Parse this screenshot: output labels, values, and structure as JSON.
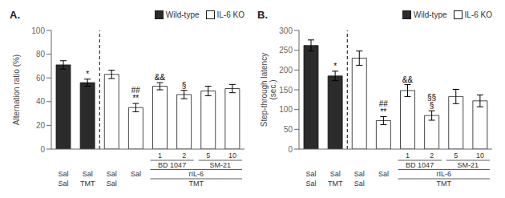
{
  "chart_data": [
    {
      "type": "bar",
      "title": "A.",
      "y_label": "Alternation ratio (%)",
      "ylim": [
        0,
        100
      ],
      "yticks": [
        0,
        20,
        40,
        60,
        80,
        100
      ],
      "categories": [
        null,
        null,
        null,
        null,
        "1",
        "2",
        "5",
        "10"
      ],
      "series": [
        {
          "name": "Wild-type",
          "color": "#2b2b2b",
          "values": [
            71,
            56,
            null,
            null,
            null,
            null,
            null,
            null
          ],
          "errors": [
            3.5,
            3.0,
            null,
            null,
            null,
            null,
            null,
            null
          ]
        },
        {
          "name": "IL-6 KO",
          "color": "white",
          "values": [
            null,
            null,
            63,
            35,
            53,
            46,
            49,
            51
          ],
          "errors": [
            null,
            null,
            3.5,
            3.5,
            3.0,
            3.5,
            4.0,
            3.5
          ]
        }
      ],
      "annotations": [
        {
          "bar": 1,
          "text": "*"
        },
        {
          "bar": 3,
          "text": "**"
        },
        {
          "bar": 3,
          "text": "##"
        },
        {
          "bar": 4,
          "text": "&&"
        },
        {
          "bar": 5,
          "text": "§"
        }
      ],
      "group_labels": [
        [
          {
            "text": "BD 1047",
            "from": 4,
            "to": 5
          },
          {
            "text": "SM-21",
            "from": 6,
            "to": 7
          }
        ],
        [
          {
            "text": "Sal",
            "from": 0,
            "to": 0
          },
          {
            "text": "Sal",
            "from": 1,
            "to": 1
          },
          {
            "text": "Sal",
            "from": 2,
            "to": 2
          },
          {
            "text": "Sal",
            "from": 3,
            "to": 3
          },
          {
            "text": "rIL-6",
            "from": 4,
            "to": 7
          }
        ],
        [
          {
            "text": "Sal",
            "from": 0,
            "to": 0
          },
          {
            "text": "TMT",
            "from": 1,
            "to": 1
          },
          {
            "text": "Sal",
            "from": 2,
            "to": 2
          },
          {
            "text": "TMT",
            "from": 4,
            "to": 7
          }
        ]
      ],
      "legend": "upper right"
    },
    {
      "type": "bar",
      "title": "B.",
      "y_label": "Step-through latency\n(sec.)",
      "ylim": [
        0,
        300
      ],
      "yticks": [
        0,
        50,
        100,
        150,
        200,
        250,
        300
      ],
      "categories": [
        null,
        null,
        null,
        null,
        "1",
        "2",
        "5",
        "10"
      ],
      "series": [
        {
          "name": "Wild-type",
          "color": "#2b2b2b",
          "values": [
            262,
            185,
            null,
            null,
            null,
            null,
            null,
            null
          ],
          "errors": [
            14,
            12,
            null,
            null,
            null,
            null,
            null,
            null
          ]
        },
        {
          "name": "IL-6 KO",
          "color": "white",
          "values": [
            null,
            null,
            230,
            72,
            148,
            85,
            133,
            122
          ],
          "errors": [
            null,
            null,
            18,
            10,
            15,
            12,
            18,
            15
          ]
        }
      ],
      "annotations": [
        {
          "bar": 1,
          "text": "*"
        },
        {
          "bar": 3,
          "text": "**"
        },
        {
          "bar": 3,
          "text": "##"
        },
        {
          "bar": 4,
          "text": "&&"
        },
        {
          "bar": 5,
          "text": "§"
        },
        {
          "bar": 5,
          "text": "§§"
        }
      ],
      "group_labels": [
        [
          {
            "text": "BD 1047",
            "from": 4,
            "to": 5
          },
          {
            "text": "SM-21",
            "from": 6,
            "to": 7
          }
        ],
        [
          {
            "text": "Sal",
            "from": 0,
            "to": 0
          },
          {
            "text": "Sal",
            "from": 1,
            "to": 1
          },
          {
            "text": "Sal",
            "from": 2,
            "to": 2
          },
          {
            "text": "Sal",
            "from": 3,
            "to": 3
          },
          {
            "text": "rIL-6",
            "from": 4,
            "to": 7
          }
        ],
        [
          {
            "text": "Sal",
            "from": 0,
            "to": 0
          },
          {
            "text": "TMT",
            "from": 1,
            "to": 1
          },
          {
            "text": "Sal",
            "from": 2,
            "to": 2
          },
          {
            "text": "TMT",
            "from": 4,
            "to": 7
          }
        ]
      ],
      "legend": "upper right"
    }
  ]
}
